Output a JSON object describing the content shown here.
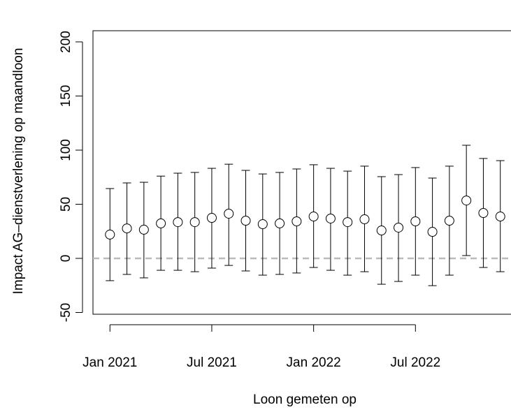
{
  "chart_data": {
    "type": "errorbar",
    "xlabel": "Loon gemeten op",
    "ylabel": "Impact AG–dienstverlening op maandloon",
    "x": [
      "2021-01",
      "2021-02",
      "2021-03",
      "2021-04",
      "2021-05",
      "2021-06",
      "2021-07",
      "2021-08",
      "2021-09",
      "2021-10",
      "2021-11",
      "2021-12",
      "2022-01",
      "2022-02",
      "2022-03",
      "2022-04",
      "2022-05",
      "2022-06",
      "2022-07",
      "2022-08",
      "2022-09",
      "2022-10",
      "2022-11",
      "2022-12"
    ],
    "values": [
      22,
      27.7,
      26.5,
      32.3,
      33.5,
      33.5,
      37.4,
      41.3,
      34.8,
      31.6,
      32.3,
      34.2,
      38.7,
      36.8,
      33.5,
      36.1,
      25.8,
      28.4,
      34.2,
      24.5,
      34.8,
      53.5,
      41.9,
      38.7
    ],
    "lower": [
      -20.6,
      -14.8,
      -18,
      -11,
      -11,
      -12.3,
      -9,
      -6.5,
      -11.6,
      -15.5,
      -14.8,
      -13.5,
      -8.4,
      -11,
      -15.5,
      -12.3,
      -23.9,
      -21.3,
      -15.5,
      -25.2,
      -15.5,
      2.6,
      -8.4,
      -12.3
    ],
    "upper": [
      64.5,
      69.7,
      70.3,
      76,
      78.7,
      79.4,
      83.2,
      87,
      81.3,
      78,
      79.4,
      82.6,
      86.5,
      83.2,
      80.6,
      85.2,
      75.5,
      77.4,
      83.9,
      74.2,
      85.2,
      104.5,
      92.3,
      90.3
    ],
    "color": "#000000",
    "hline": 0,
    "hline_color": "#bbbbbb",
    "xlim": [
      "2020-12",
      "2023-01"
    ],
    "xticks": [
      {
        "value": "2021-01",
        "label": "Jan 2021"
      },
      {
        "value": "2021-07",
        "label": "Jul 2021"
      },
      {
        "value": "2022-01",
        "label": "Jan 2022"
      },
      {
        "value": "2022-07",
        "label": "Jul 2022"
      }
    ],
    "ylim": [
      -51.6,
      210.3
    ],
    "yticks": [
      -50,
      0,
      50,
      100,
      150,
      200
    ]
  }
}
